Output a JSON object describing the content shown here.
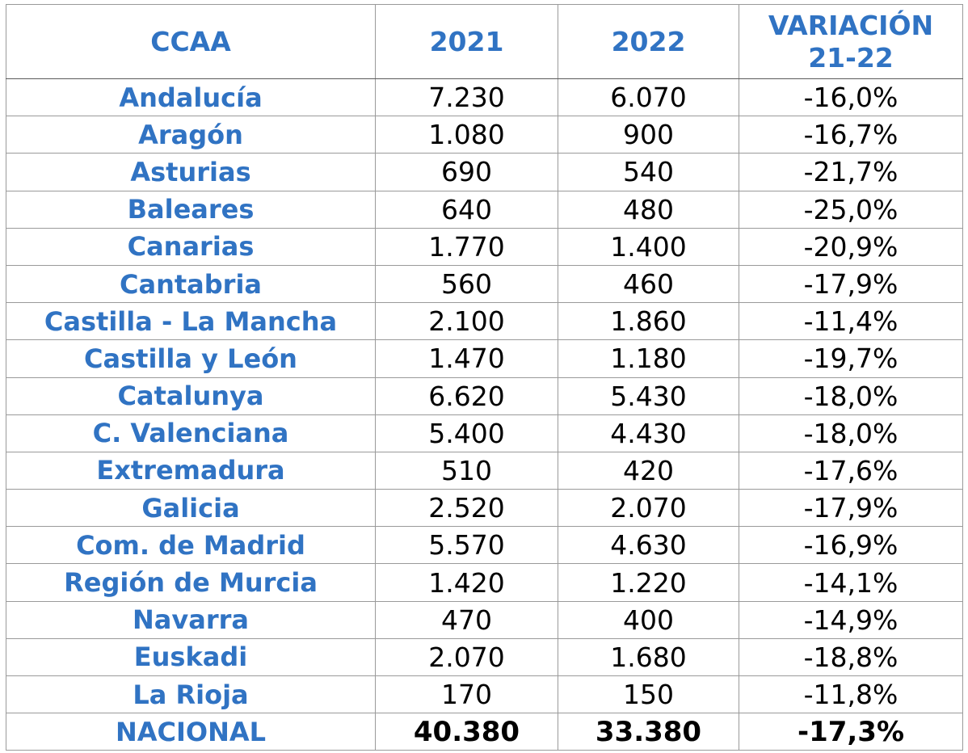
{
  "headers": {
    "ccaa": "CCAA",
    "y2021": "2021",
    "y2022": "2022",
    "variation_line1": "VARIACIÓN",
    "variation_line2": "21-22"
  },
  "rows": [
    {
      "name": "Andalucía",
      "y2021": "7.230",
      "y2022": "6.070",
      "variation": "-16,0%"
    },
    {
      "name": "Aragón",
      "y2021": "1.080",
      "y2022": "900",
      "variation": "-16,7%"
    },
    {
      "name": "Asturias",
      "y2021": "690",
      "y2022": "540",
      "variation": "-21,7%"
    },
    {
      "name": "Baleares",
      "y2021": "640",
      "y2022": "480",
      "variation": "-25,0%"
    },
    {
      "name": "Canarias",
      "y2021": "1.770",
      "y2022": "1.400",
      "variation": "-20,9%"
    },
    {
      "name": "Cantabria",
      "y2021": "560",
      "y2022": "460",
      "variation": "-17,9%"
    },
    {
      "name": "Castilla - La Mancha",
      "y2021": "2.100",
      "y2022": "1.860",
      "variation": "-11,4%"
    },
    {
      "name": "Castilla y León",
      "y2021": "1.470",
      "y2022": "1.180",
      "variation": "-19,7%"
    },
    {
      "name": "Catalunya",
      "y2021": "6.620",
      "y2022": "5.430",
      "variation": "-18,0%"
    },
    {
      "name": "C. Valenciana",
      "y2021": "5.400",
      "y2022": "4.430",
      "variation": "-18,0%"
    },
    {
      "name": "Extremadura",
      "y2021": "510",
      "y2022": "420",
      "variation": "-17,6%"
    },
    {
      "name": "Galicia",
      "y2021": "2.520",
      "y2022": "2.070",
      "variation": "-17,9%"
    },
    {
      "name": "Com. de Madrid",
      "y2021": "5.570",
      "y2022": "4.630",
      "variation": "-16,9%"
    },
    {
      "name": "Región de Murcia",
      "y2021": "1.420",
      "y2022": "1.220",
      "variation": "-14,1%"
    },
    {
      "name": "Navarra",
      "y2021": "470",
      "y2022": "400",
      "variation": "-14,9%"
    },
    {
      "name": "Euskadi",
      "y2021": "2.070",
      "y2022": "1.680",
      "variation": "-18,8%"
    },
    {
      "name": "La Rioja",
      "y2021": "170",
      "y2022": "150",
      "variation": "-11,8%"
    }
  ],
  "total": {
    "name": "NACIONAL",
    "y2021": "40.380",
    "y2022": "33.380",
    "variation": "-17,3%"
  },
  "colors": {
    "accent": "#3073c3",
    "text": "#000000",
    "border": "#9a9a9a"
  }
}
